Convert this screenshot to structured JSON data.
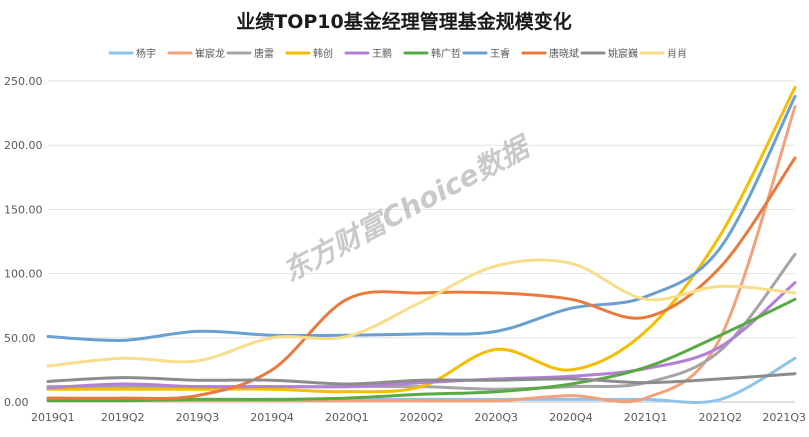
{
  "chart_data": {
    "type": "line",
    "title": "业绩TOP10基金经理管理基金规模变化",
    "categories": [
      "2019Q1",
      "2019Q2",
      "2019Q3",
      "2019Q4",
      "2020Q1",
      "2020Q2",
      "2020Q3",
      "2020Q4",
      "2021Q1",
      "2021Q2",
      "2021Q3"
    ],
    "y_ticks": [
      "0.00",
      "50.00",
      "100.00",
      "150.00",
      "200.00",
      "250.00"
    ],
    "ylim": [
      0,
      250
    ],
    "grid": true,
    "legend_position": "top",
    "watermark": "东方财富Choice数据",
    "series": [
      {
        "name": "杨宇",
        "color": "#8ec4ea",
        "values": [
          2,
          2,
          2,
          2,
          2,
          2,
          2,
          2,
          2,
          2,
          34
        ]
      },
      {
        "name": "崔宸龙",
        "color": "#f1a27a",
        "values": [
          1,
          1,
          1,
          1,
          1,
          1,
          1,
          5,
          3,
          50,
          230
        ]
      },
      {
        "name": "唐雷",
        "color": "#a5a5a5",
        "values": [
          12,
          12,
          12,
          12,
          12,
          12,
          10,
          12,
          15,
          40,
          115
        ]
      },
      {
        "name": "韩创",
        "color": "#f5bd00",
        "values": [
          10,
          10,
          10,
          10,
          8,
          12,
          41,
          25,
          55,
          130,
          245
        ]
      },
      {
        "name": "王鹏",
        "color": "#b27fd9",
        "values": [
          11,
          14,
          12,
          12,
          12,
          15,
          18,
          20,
          26,
          43,
          93
        ]
      },
      {
        "name": "韩广哲",
        "color": "#5aaa44",
        "values": [
          1,
          1,
          2,
          2,
          3,
          6,
          8,
          14,
          27,
          52,
          80
        ]
      },
      {
        "name": "王睿",
        "color": "#6a9fd2",
        "values": [
          51,
          48,
          55,
          52,
          52,
          53,
          55,
          73,
          82,
          120,
          238
        ]
      },
      {
        "name": "唐晓斌",
        "color": "#e87a3c",
        "values": [
          3,
          3,
          5,
          25,
          80,
          85,
          85,
          80,
          66,
          105,
          190
        ]
      },
      {
        "name": "姚宸巍",
        "color": "#8c8c8c",
        "values": [
          16,
          19,
          17,
          17,
          14,
          17,
          17,
          18,
          15,
          18,
          22
        ]
      },
      {
        "name": "肖肖",
        "color": "#f8de8a",
        "values": [
          28,
          34,
          32,
          50,
          51,
          78,
          106,
          108,
          80,
          90,
          85
        ]
      }
    ]
  }
}
